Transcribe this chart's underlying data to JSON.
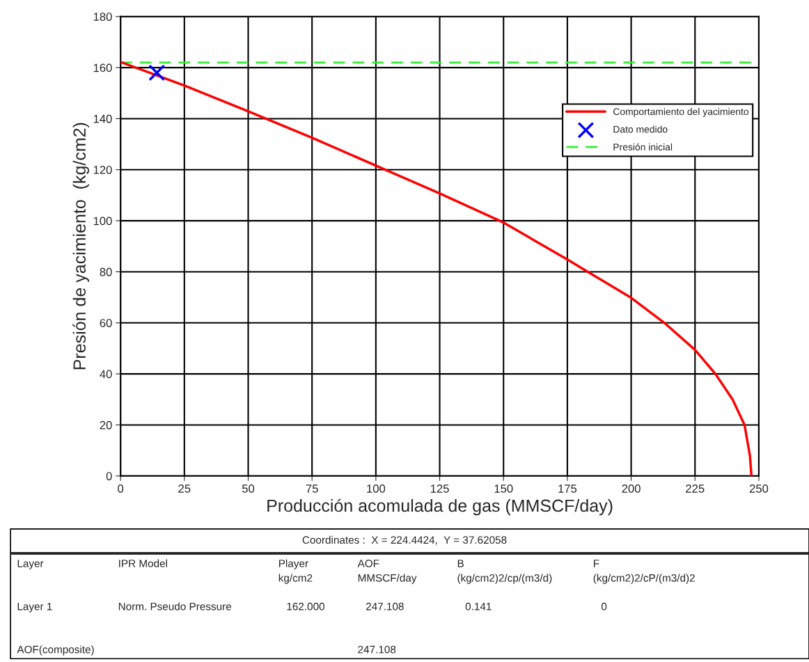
{
  "chart_data": {
    "type": "line",
    "xlabel": "Producción acomulada de gas (MMSCF/day)",
    "ylabel": "Presión de yacimiento  (kg/cm2)",
    "xlim": [
      0,
      250
    ],
    "xticks": [
      0,
      25,
      50,
      75,
      100,
      125,
      150,
      175,
      200,
      225,
      250
    ],
    "ylim": [
      0,
      180
    ],
    "yticks": [
      0,
      20,
      40,
      60,
      80,
      100,
      120,
      140,
      160,
      180
    ],
    "grid": true,
    "legend": "top right",
    "series": [
      {
        "name": "Comportamiento del yacimiento",
        "type": "line",
        "color": "#ff0000",
        "line_style": "solid",
        "marker": "none",
        "x": [
          0,
          25,
          50,
          75,
          100,
          125,
          150,
          175,
          183,
          200,
          213,
          225,
          233,
          239.7,
          244.4,
          246.5,
          247.108
        ],
        "values": [
          162.2,
          153,
          142.9,
          132.5,
          121.6,
          110.7,
          99.3,
          84.8,
          80,
          69.8,
          60,
          49.4,
          40,
          30,
          20,
          8,
          0
        ]
      },
      {
        "name": "Dato medido",
        "type": "scatter",
        "color": "#0000ff",
        "marker": "cross",
        "x": [
          14.2
        ],
        "values": [
          158
        ]
      }
    ],
    "ref_lines": [
      {
        "axis": "y",
        "value": 162,
        "label": "Presión inicial",
        "color": "#33ee33",
        "line_style": "dashed"
      }
    ],
    "annotations": [
      "Coordinates :  X = 224.4424,  Y = 37.62058",
      "Layer",
      "IPR Model",
      "Player\nkg/cm2",
      "AOF\nMMSCF/day",
      "B\n(kg/cm2)2/cp/(m3/d)",
      "F\n(kg/cm2)2/cP/(m3/d)2",
      "Layer 1",
      "Norm. Pseudo Pressure",
      "162.000",
      "247.108",
      "0.141",
      "0",
      "AOF(composite)",
      "247.108"
    ]
  }
}
